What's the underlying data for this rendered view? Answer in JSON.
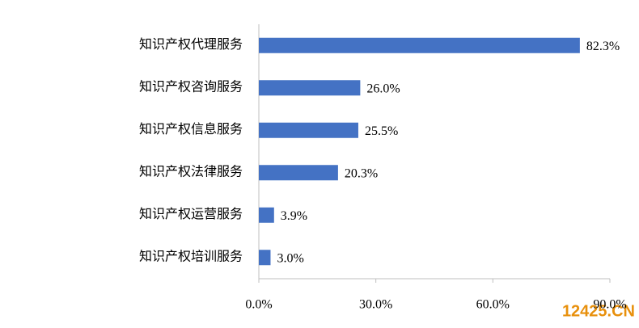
{
  "chart_data": {
    "type": "bar",
    "orientation": "horizontal",
    "categories": [
      "知识产权代理服务",
      "知识产权咨询服务",
      "知识产权信息服务",
      "知识产权法律服务",
      "知识产权运营服务",
      "知识产权培训服务"
    ],
    "values": [
      82.3,
      26.0,
      25.5,
      20.3,
      3.9,
      3.0
    ],
    "value_labels": [
      "82.3%",
      "26.0%",
      "25.5%",
      "20.3%",
      "3.9%",
      "3.0%"
    ],
    "color": "#4472c4",
    "xlim": [
      0,
      90
    ],
    "xticks": [
      {
        "value": 0,
        "label": "0.0%"
      },
      {
        "value": 30,
        "label": "30.0%"
      },
      {
        "value": 60,
        "label": "60.0%"
      },
      {
        "value": 90,
        "label": "90.0%"
      }
    ]
  },
  "watermark": "12425.CN"
}
